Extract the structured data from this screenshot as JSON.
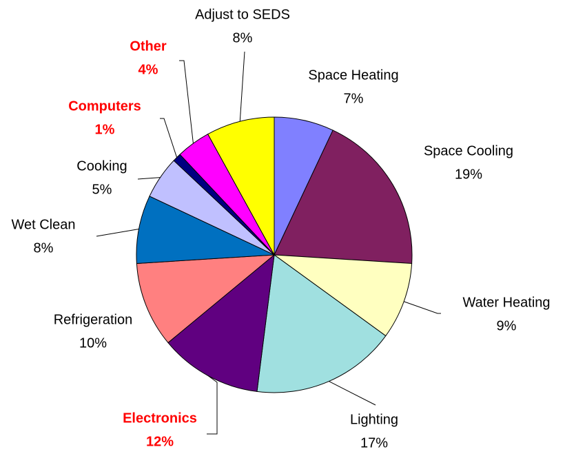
{
  "chart_data": {
    "type": "pie",
    "categories": [
      "Space Heating",
      "Space Cooling",
      "Water Heating",
      "Lighting",
      "Electronics",
      "Refrigeration",
      "Wet Clean",
      "Cooking",
      "Computers",
      "Other",
      "Adjust to SEDS"
    ],
    "values": [
      7,
      19,
      9,
      17,
      12,
      10,
      8,
      5,
      1,
      4,
      8
    ],
    "value_labels": [
      "7%",
      "19%",
      "9%",
      "17%",
      "12%",
      "10%",
      "8%",
      "5%",
      "1%",
      "4%",
      "8%"
    ],
    "colors": [
      "#8080ff",
      "#802060",
      "#ffffc0",
      "#a0e0e0",
      "#600080",
      "#ff8080",
      "#0070c0",
      "#c0c0ff",
      "#000080",
      "#ff00ff",
      "#ffff00"
    ],
    "label_colors": [
      "#000000",
      "#000000",
      "#000000",
      "#000000",
      "#ff0000",
      "#000000",
      "#000000",
      "#000000",
      "#ff0000",
      "#ff0000",
      "#000000"
    ]
  }
}
